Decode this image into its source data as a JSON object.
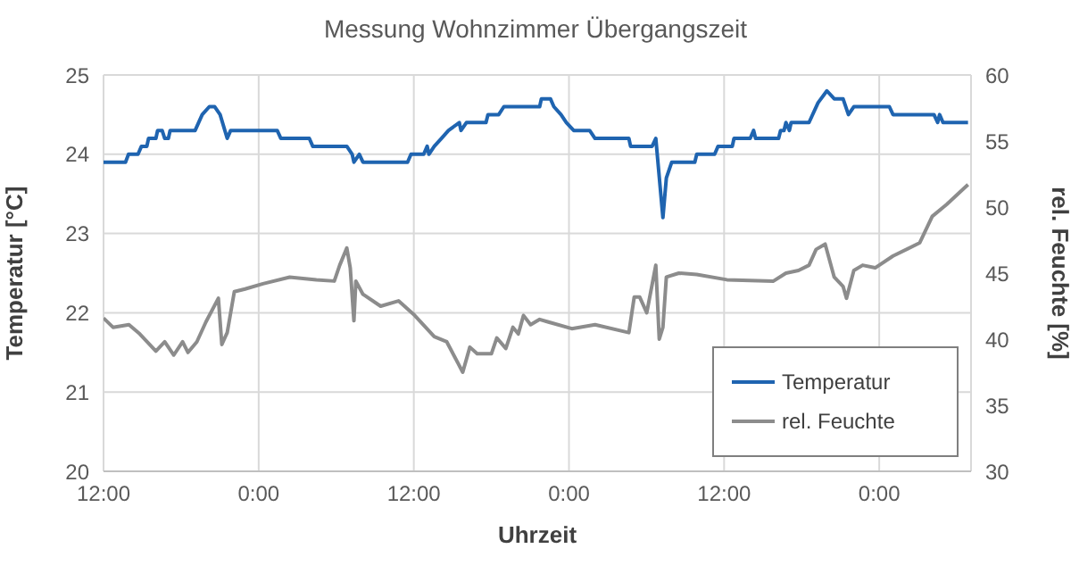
{
  "chart_data": {
    "type": "line",
    "title": "Messung Wohnzimmer Übergangszeit",
    "xlabel": "Uhrzeit",
    "ylabel": "Temperatur [°C]",
    "y2label": "rel. Feuchte [%]",
    "xlim": [
      "--01-01T12:00",
      "--01-04T07:06"
    ],
    "xticks": [
      {
        "value": "--01-01T12:00",
        "label": "12:00"
      },
      {
        "value": "--01-02T00:00",
        "label": "0:00"
      },
      {
        "value": "--01-02T12:00",
        "label": "12:00"
      },
      {
        "value": "--01-03T00:00",
        "label": "0:00"
      },
      {
        "value": "--01-03T12:00",
        "label": "12:00"
      },
      {
        "value": "--01-04T00:00",
        "label": "0:00"
      }
    ],
    "ylim": [
      20,
      25
    ],
    "yticks": [
      20,
      21,
      22,
      23,
      24,
      25
    ],
    "y2lim": [
      30,
      60
    ],
    "y2ticks": [
      30,
      35,
      40,
      45,
      50,
      55,
      60
    ],
    "grid": true,
    "legend": "bottom right",
    "series": [
      {
        "name": "Temperatur",
        "color": "#1f64b0",
        "axis": "y",
        "x": [
          "--01-01T12:00",
          "--01-01T13:42",
          "--01-01T13:56",
          "--01-01T14:40",
          "--01-01T14:56",
          "--01-01T15:21",
          "--01-01T15:29",
          "--01-01T16:03",
          "--01-01T16:11",
          "--01-01T16:32",
          "--01-01T16:44",
          "--01-01T17:01",
          "--01-01T17:09",
          "--01-01T19:05",
          "--01-01T19:38",
          "--01-01T20:11",
          "--01-01T20:36",
          "--01-01T21:01",
          "--01-01T21:34",
          "--01-01T21:50",
          "--01-02T01:26",
          "--01-02T01:43",
          "--01-02T03:55",
          "--01-02T04:11",
          "--01-02T06:49",
          "--01-02T07:14",
          "--01-02T07:22",
          "--01-02T07:47",
          "--01-02T08:04",
          "--01-02T11:31",
          "--01-02T11:47",
          "--01-02T12:46",
          "--01-02T13:02",
          "--01-02T13:10",
          "--01-02T13:35",
          "--01-02T14:08",
          "--01-02T14:41",
          "--01-02T15:31",
          "--01-02T15:39",
          "--01-02T16:04",
          "--01-02T17:35",
          "--01-02T17:44",
          "--01-02T18:34",
          "--01-02T18:58",
          "--01-02T21:44",
          "--01-02T21:52",
          "--01-02T22:34",
          "--01-02T22:50",
          "--01-02T23:23",
          "--01-02T23:48",
          "--01-03T00:22",
          "--01-03T01:36",
          "--01-03T02:01",
          "--01-03T04:38",
          "--01-03T04:46",
          "--01-03T06:26",
          "--01-03T06:43",
          "--01-03T07:16",
          "--01-03T07:32",
          "--01-03T07:57",
          "--01-03T09:44",
          "--01-03T09:53",
          "--01-03T11:16",
          "--01-03T11:32",
          "--01-03T12:38",
          "--01-03T12:46",
          "--01-03T14:01",
          "--01-03T14:17",
          "--01-03T14:26",
          "--01-03T16:13",
          "--01-03T16:22",
          "--01-03T16:38",
          "--01-03T16:47",
          "--01-03T17:03",
          "--01-03T17:11",
          "--01-03T18:34",
          "--01-03T19:16",
          "--01-03T19:57",
          "--01-03T20:31",
          "--01-03T21:12",
          "--01-03T21:37",
          "--01-03T22:02",
          "--01-04T00:47",
          "--01-04T01:04",
          "--01-04T04:14",
          "--01-04T04:31",
          "--01-04T04:40",
          "--01-04T04:56",
          "--01-04T06:52"
        ],
        "values": [
          23.9,
          23.9,
          24.0,
          24.0,
          24.1,
          24.1,
          24.2,
          24.2,
          24.3,
          24.3,
          24.2,
          24.2,
          24.3,
          24.3,
          24.5,
          24.6,
          24.6,
          24.5,
          24.2,
          24.3,
          24.3,
          24.2,
          24.2,
          24.1,
          24.1,
          24.0,
          23.9,
          24.0,
          23.9,
          23.9,
          24.0,
          24.0,
          24.1,
          24.0,
          24.1,
          24.2,
          24.3,
          24.4,
          24.3,
          24.4,
          24.4,
          24.5,
          24.5,
          24.6,
          24.6,
          24.7,
          24.7,
          24.6,
          24.5,
          24.4,
          24.3,
          24.3,
          24.2,
          24.2,
          24.1,
          24.1,
          24.2,
          23.2,
          23.7,
          23.9,
          23.9,
          24.0,
          24.0,
          24.1,
          24.1,
          24.2,
          24.2,
          24.3,
          24.2,
          24.2,
          24.3,
          24.3,
          24.4,
          24.3,
          24.4,
          24.4,
          24.65,
          24.8,
          24.7,
          24.7,
          24.5,
          24.6,
          24.6,
          24.5,
          24.5,
          24.4,
          24.5,
          24.4,
          24.4
        ]
      },
      {
        "name": "rel. Feuchte",
        "color": "#8c8c8c",
        "axis": "y2",
        "x": [
          "--01-01T12:00",
          "--01-01T12:44",
          "--01-01T13:58",
          "--01-01T14:48",
          "--01-01T16:03",
          "--01-01T16:44",
          "--01-01T17:26",
          "--01-01T18:07",
          "--01-01T18:32",
          "--01-01T19:13",
          "--01-01T19:55",
          "--01-01T20:53",
          "--01-01T21:09",
          "--01-01T21:34",
          "--01-01T22:07",
          "--01-01T22:57",
          "--01-02T00:20",
          "--01-02T02:24",
          "--01-02T04:28",
          "--01-02T05:51",
          "--01-02T06:16",
          "--01-02T06:49",
          "--01-02T07:05",
          "--01-02T07:22",
          "--01-02T07:31",
          "--01-02T08:04",
          "--01-02T09:26",
          "--01-02T10:49",
          "--01-02T12:04",
          "--01-02T13:35",
          "--01-02T14:33",
          "--01-02T15:47",
          "--01-02T16:20",
          "--01-02T16:54",
          "--01-02T18:00",
          "--01-02T18:25",
          "--01-02T19:07",
          "--01-02T19:40",
          "--01-02T20:05",
          "--01-02T20:29",
          "--01-02T21:02",
          "--01-02T21:44",
          "--01-02T22:25",
          "--01-03T00:13",
          "--01-03T02:01",
          "--01-03T04:38",
          "--01-03T05:03",
          "--01-03T05:28",
          "--01-03T06:01",
          "--01-03T06:43",
          "--01-03T06:59",
          "--01-03T07:16",
          "--01-03T07:32",
          "--01-03T08:30",
          "--01-03T09:53",
          "--01-03T12:13",
          "--01-03T15:49",
          "--01-03T16:47",
          "--01-03T17:45",
          "--01-03T18:34",
          "--01-03T19:07",
          "--01-03T19:49",
          "--01-03T20:31",
          "--01-03T21:12",
          "--01-03T21:28",
          "--01-03T22:02",
          "--01-03T22:43",
          "--01-03T23:41",
          "--01-04T01:04",
          "--01-04T03:08",
          "--01-04T04:06",
          "--01-04T05:13",
          "--01-04T06:52"
        ],
        "values": [
          41.6,
          40.9,
          41.1,
          40.4,
          39.1,
          39.8,
          38.8,
          39.8,
          39.0,
          39.8,
          41.3,
          43.1,
          39.6,
          40.5,
          43.6,
          43.8,
          44.2,
          44.7,
          44.5,
          44.4,
          45.6,
          46.9,
          45.4,
          41.4,
          44.4,
          43.4,
          42.5,
          42.9,
          41.8,
          40.2,
          39.8,
          37.5,
          39.4,
          38.9,
          38.9,
          40.1,
          39.3,
          40.9,
          40.4,
          41.8,
          41.1,
          41.5,
          41.3,
          40.8,
          41.1,
          40.5,
          43.2,
          43.2,
          42.0,
          45.6,
          40.0,
          40.9,
          44.7,
          45.0,
          44.9,
          44.5,
          44.4,
          45.0,
          45.2,
          45.6,
          46.8,
          47.2,
          44.7,
          44.0,
          43.1,
          45.2,
          45.6,
          45.4,
          46.3,
          47.3,
          49.3,
          50.2,
          51.7
        ]
      }
    ]
  }
}
